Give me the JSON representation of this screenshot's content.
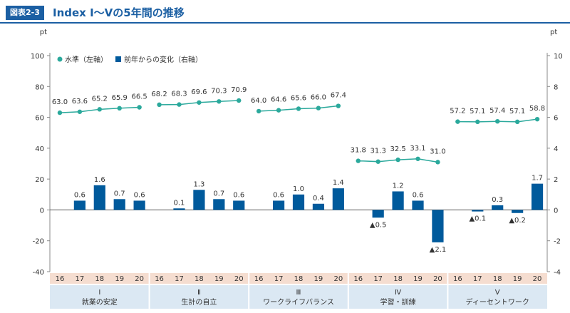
{
  "figure": {
    "badge": "図表2-3",
    "title": "Index Ⅰ～Ⅴの5年間の推移"
  },
  "chart_data": {
    "type": "bar+line",
    "left_axis": {
      "unit": "pt",
      "ylim": [
        -40,
        100
      ],
      "ticks": [
        100,
        80,
        60,
        40,
        20,
        0,
        -20,
        -40
      ]
    },
    "right_axis": {
      "unit": "pt",
      "ylim": [
        -4,
        10
      ],
      "ticks": [
        10,
        8,
        6,
        4,
        2,
        0,
        -2,
        -4
      ]
    },
    "legend": {
      "position": "top-left",
      "level": "水準（左軸）",
      "change": "前年からの変化（右軸）"
    },
    "colors": {
      "level": "#2ba99c",
      "change": "#005a9c",
      "tick_bg": "#f5ddd0",
      "group_bg": "#dbe8f3"
    },
    "years": [
      "16",
      "17",
      "18",
      "19",
      "20"
    ],
    "groups": [
      {
        "numeral": "Ⅰ",
        "name": "就業の安定",
        "level": [
          63.0,
          63.6,
          65.2,
          65.9,
          66.5
        ],
        "change": [
          null,
          0.6,
          1.6,
          0.7,
          0.6
        ],
        "level_labels": [
          "63.0",
          "63.6",
          "65.2",
          "65.9",
          "66.5"
        ],
        "change_labels": [
          "",
          "0.6",
          "1.6",
          "0.7",
          "0.6"
        ]
      },
      {
        "numeral": "Ⅱ",
        "name": "生計の自立",
        "level": [
          68.2,
          68.3,
          69.6,
          70.3,
          70.9
        ],
        "change": [
          null,
          0.1,
          1.3,
          0.7,
          0.6
        ],
        "level_labels": [
          "68.2",
          "68.3",
          "69.6",
          "70.3",
          "70.9"
        ],
        "change_labels": [
          "",
          "0.1",
          "1.3",
          "0.7",
          "0.6"
        ]
      },
      {
        "numeral": "Ⅲ",
        "name": "ワークライフバランス",
        "level": [
          64.0,
          64.6,
          65.6,
          66.0,
          67.4
        ],
        "change": [
          null,
          0.6,
          1.0,
          0.4,
          1.4
        ],
        "level_labels": [
          "64.0",
          "64.6",
          "65.6",
          "66.0",
          "67.4"
        ],
        "change_labels": [
          "",
          "0.6",
          "1.0",
          "0.4",
          "1.4"
        ]
      },
      {
        "numeral": "Ⅳ",
        "name": "学習・訓練",
        "level": [
          31.8,
          31.3,
          32.5,
          33.1,
          31.0
        ],
        "change": [
          null,
          -0.5,
          1.2,
          0.6,
          -2.1
        ],
        "level_labels": [
          "31.8",
          "31.3",
          "32.5",
          "33.1",
          "31.0"
        ],
        "change_labels": [
          "",
          "▲0.5",
          "1.2",
          "0.6",
          "▲2.1"
        ]
      },
      {
        "numeral": "Ⅴ",
        "name": "ディーセントワーク",
        "level": [
          57.2,
          57.1,
          57.4,
          57.1,
          58.8
        ],
        "change": [
          null,
          -0.1,
          0.3,
          -0.2,
          1.7
        ],
        "level_labels": [
          "57.2",
          "57.1",
          "57.4",
          "57.1",
          "58.8"
        ],
        "change_labels": [
          "",
          "▲0.1",
          "0.3",
          "▲0.2",
          "1.7"
        ]
      }
    ]
  }
}
